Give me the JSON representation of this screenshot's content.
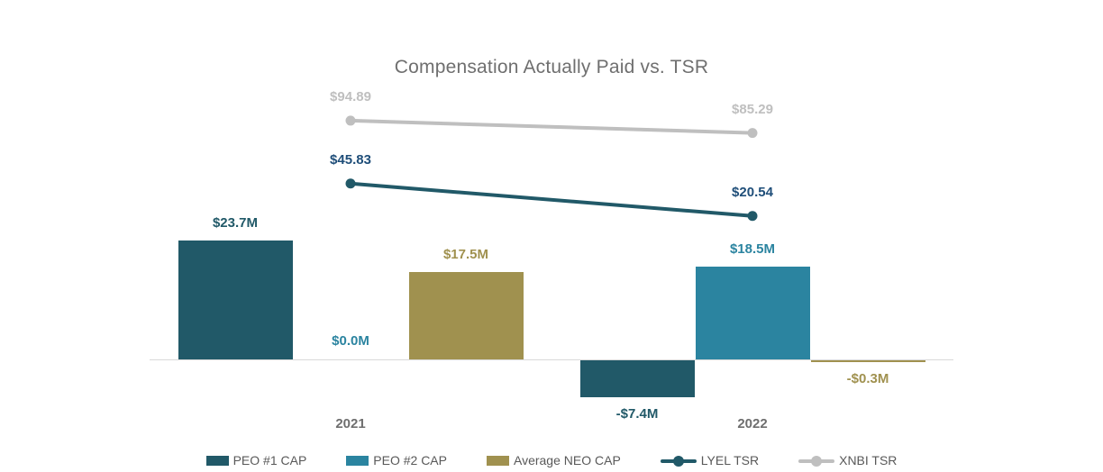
{
  "chart_data": {
    "type": "bar+line combo",
    "title": "Compensation Actually Paid vs. TSR",
    "categories": [
      "2021",
      "2022"
    ],
    "bar_series": [
      {
        "name": "PEO #1 CAP",
        "color": "#215968",
        "label_color": "#215968",
        "values": [
          23.7,
          -7.4
        ],
        "labels": [
          "$23.7M",
          "-$7.4M"
        ]
      },
      {
        "name": "PEO #2 CAP",
        "color": "#2B84A0",
        "label_color": "#2B84A0",
        "values": [
          0.0,
          18.5
        ],
        "labels": [
          "$0.0M",
          "$18.5M"
        ]
      },
      {
        "name": "Average NEO CAP",
        "color": "#A0914F",
        "label_color": "#A0914F",
        "values": [
          17.5,
          -0.3
        ],
        "labels": [
          "$17.5M",
          "-$0.3M"
        ]
      }
    ],
    "line_series": [
      {
        "name": "LYEL TSR",
        "color": "#215968",
        "label_color": "#1F4E79",
        "values": [
          45.83,
          20.54
        ],
        "labels": [
          "$45.83",
          "$20.54"
        ]
      },
      {
        "name": "XNBI TSR",
        "color": "#BFBFBF",
        "label_color": "#BFBFBF",
        "values": [
          94.89,
          85.29
        ],
        "labels": [
          "$94.89",
          "$85.29"
        ]
      }
    ],
    "value_axis_units": "millions USD (bars), TSR value (lines)",
    "grid": "off",
    "legend_position": "bottom"
  },
  "legend": {
    "items": [
      {
        "label": "PEO #1 CAP",
        "marker": "swatch",
        "color": "#215968"
      },
      {
        "label": "PEO #2 CAP",
        "marker": "swatch",
        "color": "#2B84A0"
      },
      {
        "label": "Average NEO CAP",
        "marker": "swatch",
        "color": "#A0914F"
      },
      {
        "label": "LYEL TSR",
        "marker": "line-dot",
        "color": "#215968"
      },
      {
        "label": "XNBI TSR",
        "marker": "line-dot",
        "color": "#BFBFBF"
      }
    ]
  },
  "colors": {
    "title_text": "#6F6F6F",
    "tick_text": "#6E6E6E",
    "legend_text": "#595959",
    "axis_line": "#D9D9D9",
    "background": "#FFFFFF"
  }
}
